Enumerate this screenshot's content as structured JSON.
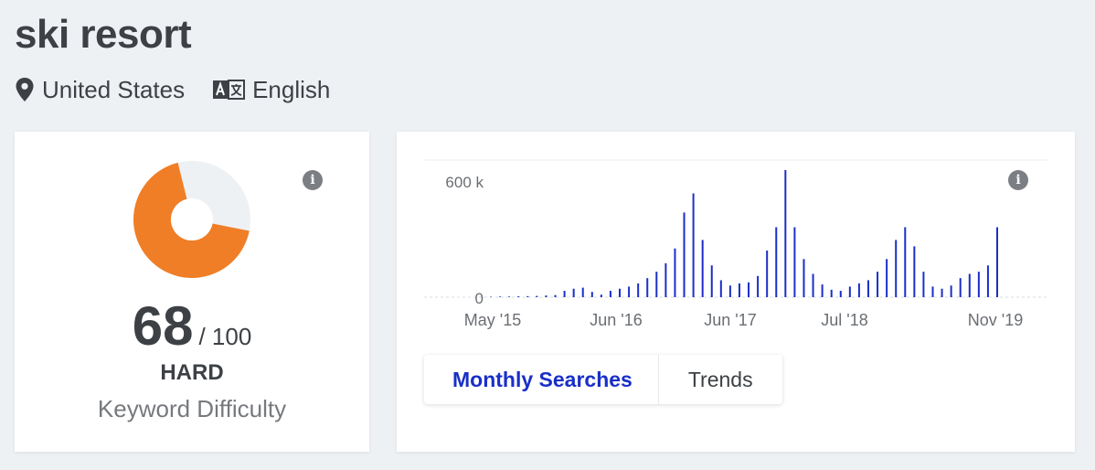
{
  "keyword": "ski resort",
  "location": {
    "icon": "location-pin-icon",
    "label": "United States"
  },
  "language": {
    "icon": "translate-icon",
    "label": "English"
  },
  "difficulty": {
    "value": "68",
    "max_label": "/ 100",
    "level": "HARD",
    "caption": "Keyword Difficulty",
    "score": 68,
    "color": "#f07e26",
    "track_color": "#eef1f4",
    "info_icon": "info-icon"
  },
  "volume_card": {
    "info_icon": "info-icon",
    "tabs": [
      {
        "label": "Monthly Searches",
        "active": true
      },
      {
        "label": "Trends",
        "active": false
      }
    ]
  },
  "chart_data": {
    "type": "bar",
    "color": "#1a2fc7",
    "y_tick_labels": [
      "0",
      "600 k"
    ],
    "ylim": [
      0,
      600000
    ],
    "x_tick_labels": [
      "May '15",
      "Jun '16",
      "Jun '17",
      "Jul '18",
      "Nov '19"
    ],
    "values": [
      2000,
      3000,
      3000,
      4000,
      5000,
      6000,
      8000,
      10000,
      30000,
      40000,
      45000,
      25000,
      12000,
      30000,
      40000,
      50000,
      65000,
      90000,
      120000,
      160000,
      230000,
      400000,
      490000,
      270000,
      150000,
      80000,
      55000,
      65000,
      70000,
      100000,
      220000,
      330000,
      600000,
      330000,
      180000,
      110000,
      60000,
      35000,
      30000,
      50000,
      65000,
      80000,
      120000,
      180000,
      270000,
      330000,
      240000,
      120000,
      50000,
      40000,
      55000,
      90000,
      110000,
      120000,
      150000,
      330000
    ]
  }
}
